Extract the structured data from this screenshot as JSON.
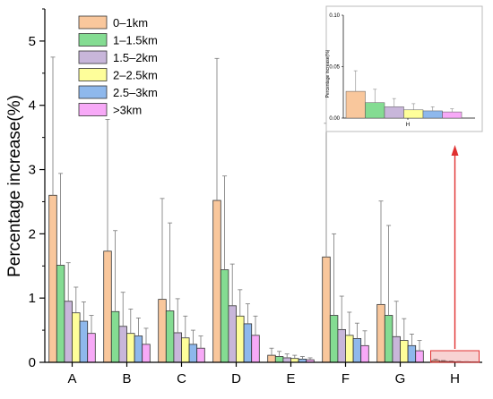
{
  "chart_data": {
    "type": "bar",
    "ylabel": "Percentage increase(%)",
    "ylim": [
      0,
      5.5
    ],
    "yticks": [
      "0",
      "1",
      "2",
      "3",
      "4",
      "5"
    ],
    "categories": [
      "A",
      "B",
      "C",
      "D",
      "E",
      "F",
      "G",
      "H"
    ],
    "legend_position": "top-left",
    "series": [
      {
        "name": "0–1km",
        "color": "#F9C79C",
        "values": [
          2.6,
          1.73,
          0.98,
          2.52,
          0.11,
          1.64,
          0.9,
          0.026
        ],
        "errors": [
          2.15,
          2.05,
          1.57,
          2.21,
          0.11,
          2.08,
          1.61,
          0.02
        ]
      },
      {
        "name": "1–1.5km",
        "color": "#84DC92",
        "values": [
          1.51,
          0.79,
          0.8,
          1.44,
          0.09,
          0.73,
          0.73,
          0.015
        ],
        "errors": [
          1.43,
          1.26,
          1.37,
          1.46,
          0.08,
          1.27,
          1.4,
          0.013
        ]
      },
      {
        "name": "1.5–2km",
        "color": "#C8B6DA",
        "values": [
          0.95,
          0.56,
          0.46,
          0.88,
          0.07,
          0.51,
          0.4,
          0.011
        ],
        "errors": [
          0.6,
          0.53,
          0.53,
          0.65,
          0.06,
          0.52,
          0.55,
          0.008
        ]
      },
      {
        "name": "2–2.5km",
        "color": "#FEFE9A",
        "values": [
          0.77,
          0.45,
          0.38,
          0.72,
          0.06,
          0.42,
          0.34,
          0.008
        ],
        "errors": [
          0.4,
          0.38,
          0.34,
          0.41,
          0.05,
          0.36,
          0.34,
          0.006
        ]
      },
      {
        "name": "2.5–3km",
        "color": "#8EB8EC",
        "values": [
          0.64,
          0.41,
          0.28,
          0.6,
          0.05,
          0.37,
          0.26,
          0.007
        ],
        "errors": [
          0.3,
          0.28,
          0.22,
          0.31,
          0.04,
          0.24,
          0.18,
          0.004
        ]
      },
      {
        "name": ">3km",
        "color": "#F7A9F7",
        "values": [
          0.45,
          0.28,
          0.22,
          0.42,
          0.04,
          0.26,
          0.18,
          0.006
        ],
        "errors": [
          0.28,
          0.25,
          0.19,
          0.3,
          0.03,
          0.23,
          0.16,
          0.003
        ]
      }
    ],
    "inset": {
      "category": "H",
      "ylabel": "Percentage increase(%)",
      "ylim": [
        0,
        0.1
      ],
      "yticks": [
        "0.00",
        "0.05",
        "0.10"
      ],
      "xlabel": "H"
    },
    "highlight_color": "#E03030"
  }
}
